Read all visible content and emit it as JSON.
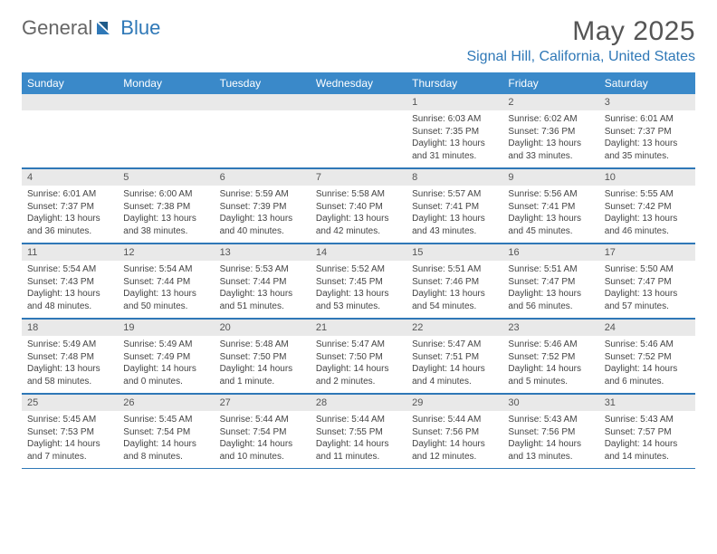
{
  "brand": {
    "part1": "General",
    "part2": "Blue"
  },
  "title": "May 2025",
  "location": "Signal Hill, California, United States",
  "colors": {
    "header_bg": "#3a89c9",
    "accent": "#2f78b7",
    "strip_bg": "#e9e9e9",
    "text": "#444",
    "title_text": "#555"
  },
  "dayHeaders": [
    "Sunday",
    "Monday",
    "Tuesday",
    "Wednesday",
    "Thursday",
    "Friday",
    "Saturday"
  ],
  "weeks": [
    {
      "dates": [
        "",
        "",
        "",
        "",
        "1",
        "2",
        "3"
      ],
      "cells": [
        {},
        {},
        {},
        {},
        {
          "sunrise": "Sunrise: 6:03 AM",
          "sunset": "Sunset: 7:35 PM",
          "day1": "Daylight: 13 hours",
          "day2": "and 31 minutes."
        },
        {
          "sunrise": "Sunrise: 6:02 AM",
          "sunset": "Sunset: 7:36 PM",
          "day1": "Daylight: 13 hours",
          "day2": "and 33 minutes."
        },
        {
          "sunrise": "Sunrise: 6:01 AM",
          "sunset": "Sunset: 7:37 PM",
          "day1": "Daylight: 13 hours",
          "day2": "and 35 minutes."
        }
      ]
    },
    {
      "dates": [
        "4",
        "5",
        "6",
        "7",
        "8",
        "9",
        "10"
      ],
      "cells": [
        {
          "sunrise": "Sunrise: 6:01 AM",
          "sunset": "Sunset: 7:37 PM",
          "day1": "Daylight: 13 hours",
          "day2": "and 36 minutes."
        },
        {
          "sunrise": "Sunrise: 6:00 AM",
          "sunset": "Sunset: 7:38 PM",
          "day1": "Daylight: 13 hours",
          "day2": "and 38 minutes."
        },
        {
          "sunrise": "Sunrise: 5:59 AM",
          "sunset": "Sunset: 7:39 PM",
          "day1": "Daylight: 13 hours",
          "day2": "and 40 minutes."
        },
        {
          "sunrise": "Sunrise: 5:58 AM",
          "sunset": "Sunset: 7:40 PM",
          "day1": "Daylight: 13 hours",
          "day2": "and 42 minutes."
        },
        {
          "sunrise": "Sunrise: 5:57 AM",
          "sunset": "Sunset: 7:41 PM",
          "day1": "Daylight: 13 hours",
          "day2": "and 43 minutes."
        },
        {
          "sunrise": "Sunrise: 5:56 AM",
          "sunset": "Sunset: 7:41 PM",
          "day1": "Daylight: 13 hours",
          "day2": "and 45 minutes."
        },
        {
          "sunrise": "Sunrise: 5:55 AM",
          "sunset": "Sunset: 7:42 PM",
          "day1": "Daylight: 13 hours",
          "day2": "and 46 minutes."
        }
      ]
    },
    {
      "dates": [
        "11",
        "12",
        "13",
        "14",
        "15",
        "16",
        "17"
      ],
      "cells": [
        {
          "sunrise": "Sunrise: 5:54 AM",
          "sunset": "Sunset: 7:43 PM",
          "day1": "Daylight: 13 hours",
          "day2": "and 48 minutes."
        },
        {
          "sunrise": "Sunrise: 5:54 AM",
          "sunset": "Sunset: 7:44 PM",
          "day1": "Daylight: 13 hours",
          "day2": "and 50 minutes."
        },
        {
          "sunrise": "Sunrise: 5:53 AM",
          "sunset": "Sunset: 7:44 PM",
          "day1": "Daylight: 13 hours",
          "day2": "and 51 minutes."
        },
        {
          "sunrise": "Sunrise: 5:52 AM",
          "sunset": "Sunset: 7:45 PM",
          "day1": "Daylight: 13 hours",
          "day2": "and 53 minutes."
        },
        {
          "sunrise": "Sunrise: 5:51 AM",
          "sunset": "Sunset: 7:46 PM",
          "day1": "Daylight: 13 hours",
          "day2": "and 54 minutes."
        },
        {
          "sunrise": "Sunrise: 5:51 AM",
          "sunset": "Sunset: 7:47 PM",
          "day1": "Daylight: 13 hours",
          "day2": "and 56 minutes."
        },
        {
          "sunrise": "Sunrise: 5:50 AM",
          "sunset": "Sunset: 7:47 PM",
          "day1": "Daylight: 13 hours",
          "day2": "and 57 minutes."
        }
      ]
    },
    {
      "dates": [
        "18",
        "19",
        "20",
        "21",
        "22",
        "23",
        "24"
      ],
      "cells": [
        {
          "sunrise": "Sunrise: 5:49 AM",
          "sunset": "Sunset: 7:48 PM",
          "day1": "Daylight: 13 hours",
          "day2": "and 58 minutes."
        },
        {
          "sunrise": "Sunrise: 5:49 AM",
          "sunset": "Sunset: 7:49 PM",
          "day1": "Daylight: 14 hours",
          "day2": "and 0 minutes."
        },
        {
          "sunrise": "Sunrise: 5:48 AM",
          "sunset": "Sunset: 7:50 PM",
          "day1": "Daylight: 14 hours",
          "day2": "and 1 minute."
        },
        {
          "sunrise": "Sunrise: 5:47 AM",
          "sunset": "Sunset: 7:50 PM",
          "day1": "Daylight: 14 hours",
          "day2": "and 2 minutes."
        },
        {
          "sunrise": "Sunrise: 5:47 AM",
          "sunset": "Sunset: 7:51 PM",
          "day1": "Daylight: 14 hours",
          "day2": "and 4 minutes."
        },
        {
          "sunrise": "Sunrise: 5:46 AM",
          "sunset": "Sunset: 7:52 PM",
          "day1": "Daylight: 14 hours",
          "day2": "and 5 minutes."
        },
        {
          "sunrise": "Sunrise: 5:46 AM",
          "sunset": "Sunset: 7:52 PM",
          "day1": "Daylight: 14 hours",
          "day2": "and 6 minutes."
        }
      ]
    },
    {
      "dates": [
        "25",
        "26",
        "27",
        "28",
        "29",
        "30",
        "31"
      ],
      "cells": [
        {
          "sunrise": "Sunrise: 5:45 AM",
          "sunset": "Sunset: 7:53 PM",
          "day1": "Daylight: 14 hours",
          "day2": "and 7 minutes."
        },
        {
          "sunrise": "Sunrise: 5:45 AM",
          "sunset": "Sunset: 7:54 PM",
          "day1": "Daylight: 14 hours",
          "day2": "and 8 minutes."
        },
        {
          "sunrise": "Sunrise: 5:44 AM",
          "sunset": "Sunset: 7:54 PM",
          "day1": "Daylight: 14 hours",
          "day2": "and 10 minutes."
        },
        {
          "sunrise": "Sunrise: 5:44 AM",
          "sunset": "Sunset: 7:55 PM",
          "day1": "Daylight: 14 hours",
          "day2": "and 11 minutes."
        },
        {
          "sunrise": "Sunrise: 5:44 AM",
          "sunset": "Sunset: 7:56 PM",
          "day1": "Daylight: 14 hours",
          "day2": "and 12 minutes."
        },
        {
          "sunrise": "Sunrise: 5:43 AM",
          "sunset": "Sunset: 7:56 PM",
          "day1": "Daylight: 14 hours",
          "day2": "and 13 minutes."
        },
        {
          "sunrise": "Sunrise: 5:43 AM",
          "sunset": "Sunset: 7:57 PM",
          "day1": "Daylight: 14 hours",
          "day2": "and 14 minutes."
        }
      ]
    }
  ]
}
